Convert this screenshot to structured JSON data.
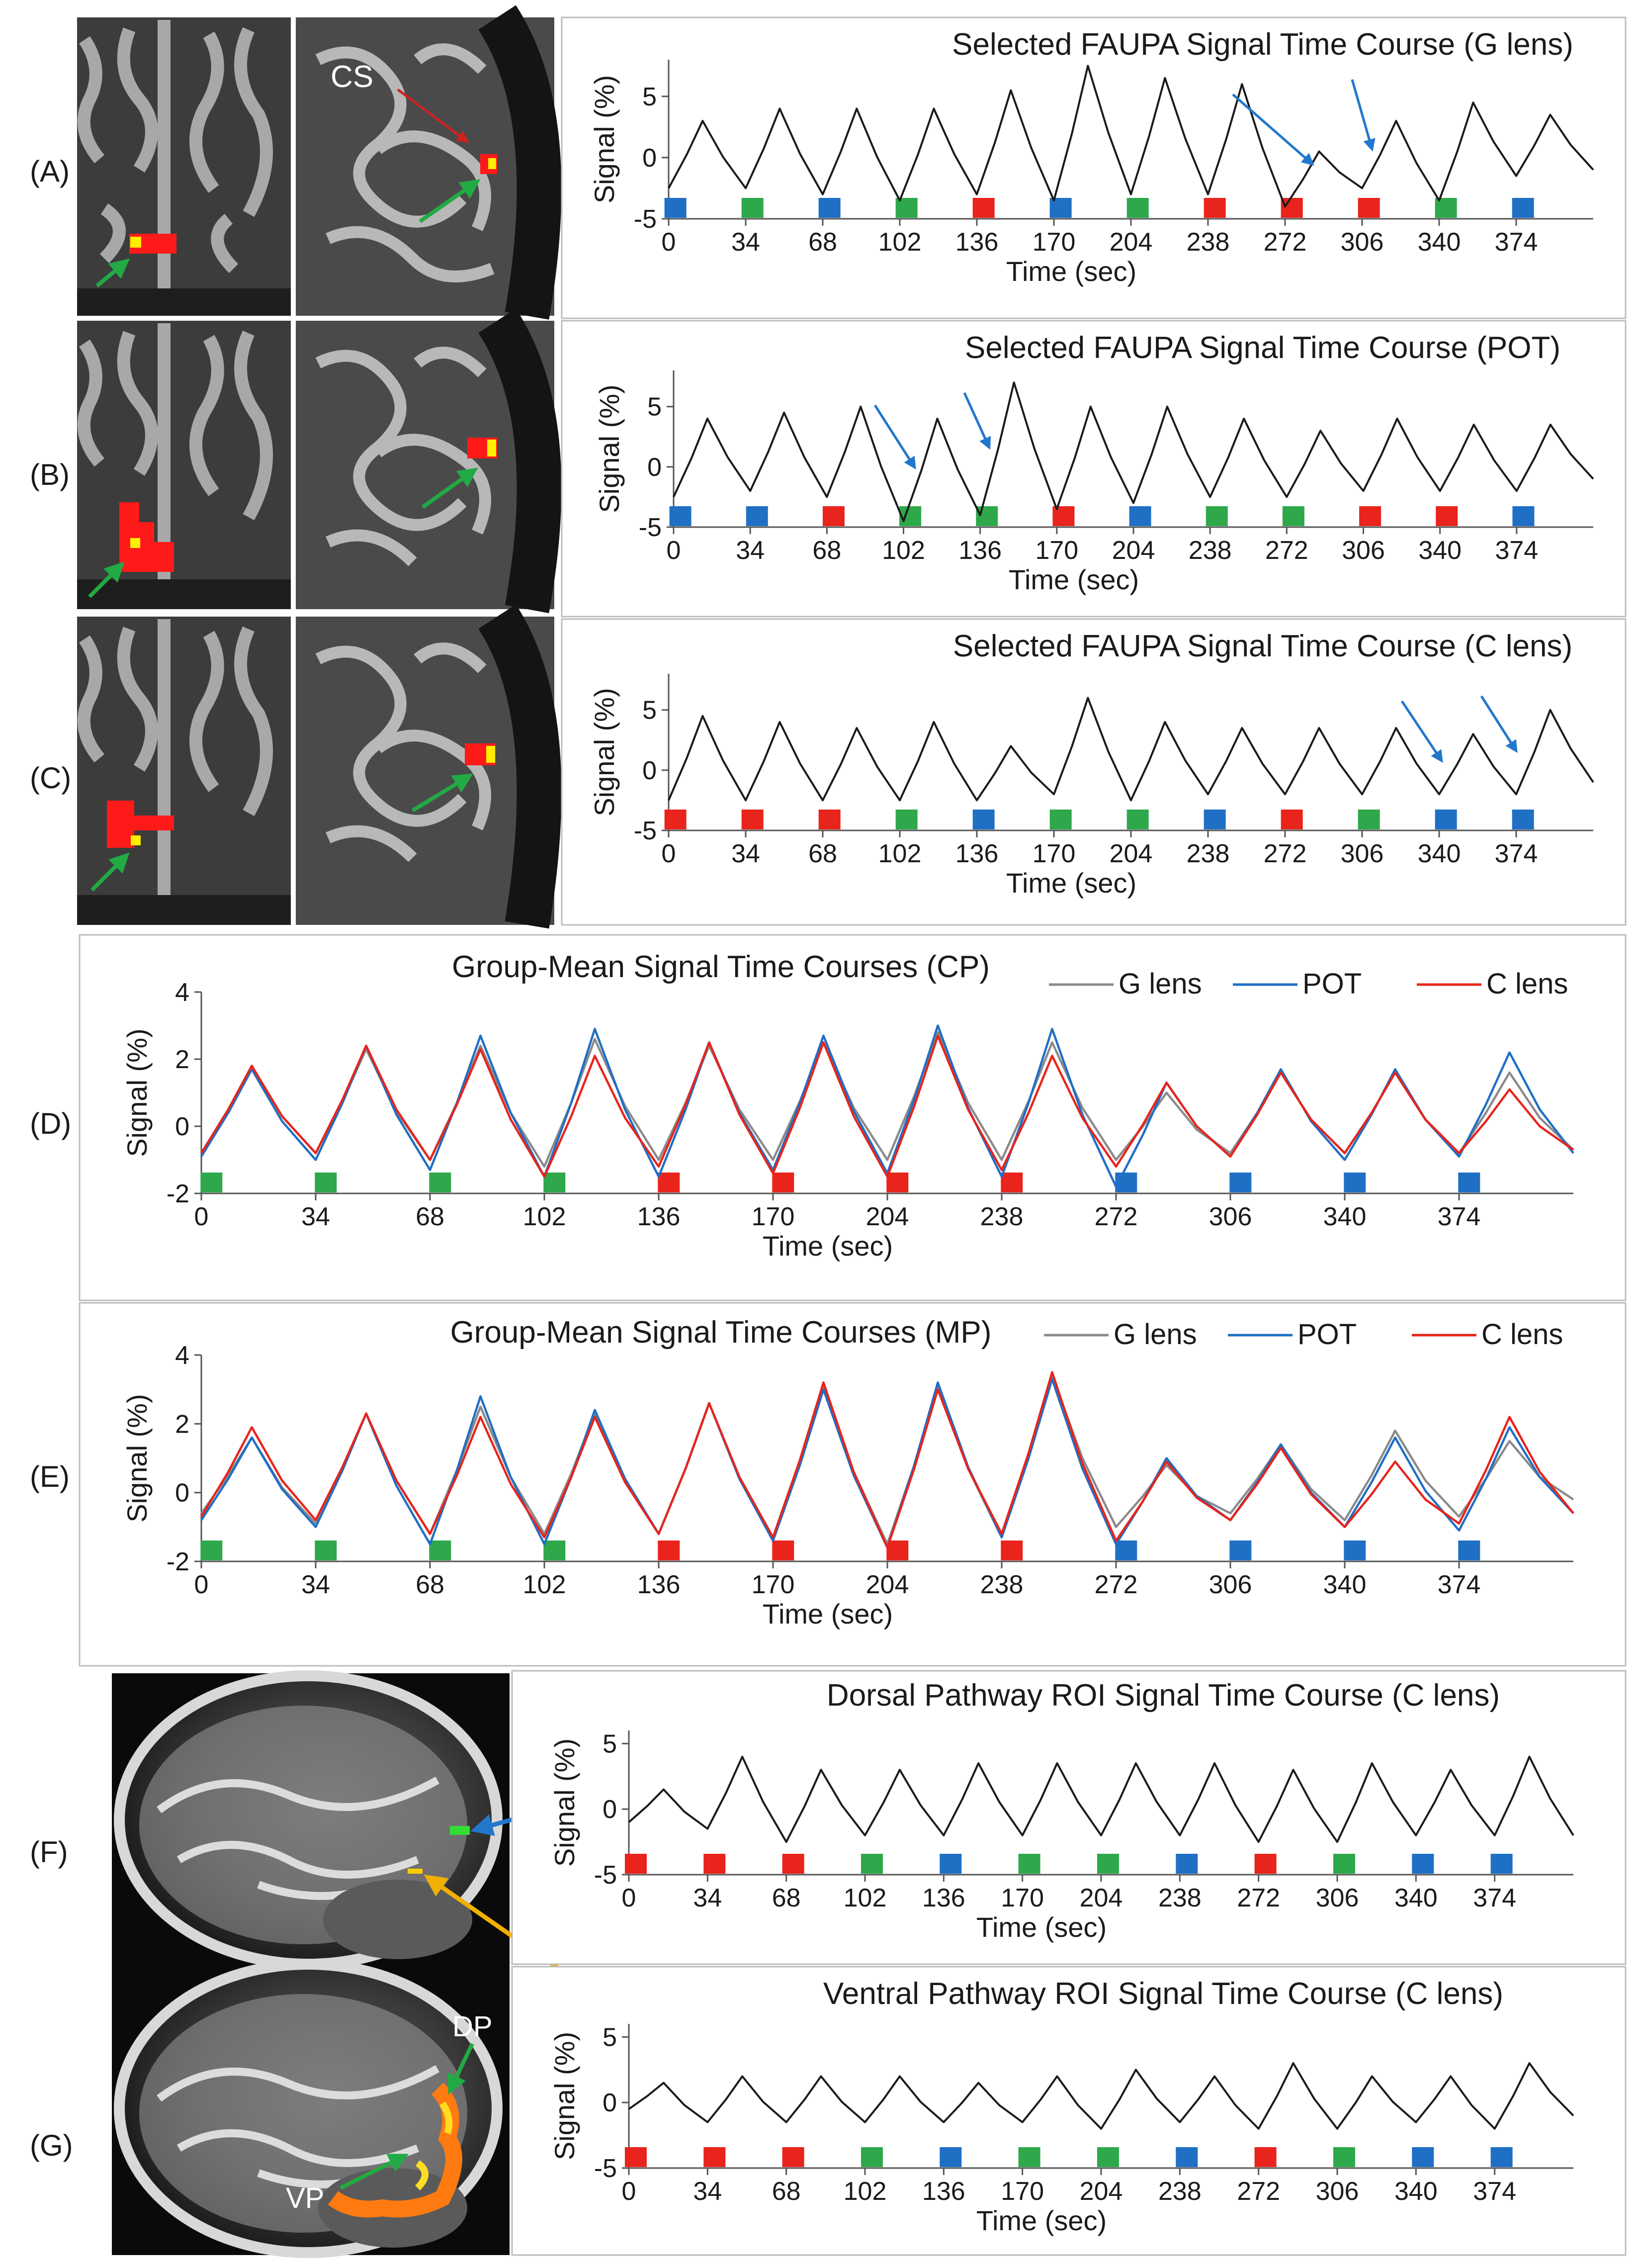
{
  "row_labels": {
    "A": "(A)",
    "B": "(B)",
    "C": "(C)",
    "D": "(D)",
    "E": "(E)",
    "F": "(F)",
    "G": "(G)"
  },
  "image_labels": {
    "cs": "CS",
    "dp": "DP",
    "vp": "VP"
  },
  "colors": {
    "green": "#2ea84a",
    "blue": "#1f6fc5",
    "red": "#e8241c",
    "gray": "#8a8a8a",
    "line": "#1a1a1a",
    "arrow_blue": "#2277cc",
    "arrow_yellow": "#f0b000",
    "arrow_green": "#22aa44",
    "arrow_red": "#cc2222"
  },
  "chart_data": [
    {
      "id": "A",
      "type": "line",
      "title": "Selected FAUPA Signal Time Course (G lens)",
      "xlabel": "Time (sec)",
      "ylabel": "Signal (%)",
      "ylim": [
        -5,
        8
      ],
      "yticks": [
        -5,
        0,
        5
      ],
      "xticks": [
        0,
        34,
        68,
        102,
        136,
        170,
        204,
        238,
        272,
        306,
        340,
        374
      ],
      "blocks": [
        "blue",
        "green",
        "blue",
        "green",
        "red",
        "blue",
        "green",
        "red",
        "red",
        "red",
        "green",
        "blue"
      ],
      "series": [
        {
          "name": "signal",
          "color": "line",
          "peaks": [
            3,
            4,
            4,
            4,
            5.5,
            7.5,
            6.5,
            6,
            0.5,
            3,
            4.5,
            3.5
          ],
          "troughs": [
            -2.5,
            -2.5,
            -3,
            -3.5,
            -3,
            -3.5,
            -3,
            -3,
            -4,
            -2.5,
            -3.5,
            -1.5,
            -1
          ]
        }
      ]
    },
    {
      "id": "B",
      "type": "line",
      "title": "Selected FAUPA Signal Time Course (POT)",
      "xlabel": "Time (sec)",
      "ylabel": "Signal (%)",
      "ylim": [
        -5,
        8
      ],
      "yticks": [
        -5,
        0,
        5
      ],
      "xticks": [
        0,
        34,
        68,
        102,
        136,
        170,
        204,
        238,
        272,
        306,
        340,
        374
      ],
      "blocks": [
        "blue",
        "blue",
        "red",
        "green",
        "green",
        "red",
        "blue",
        "green",
        "green",
        "red",
        "red",
        "blue"
      ],
      "series": [
        {
          "name": "signal",
          "color": "line",
          "peaks": [
            4,
            4.5,
            5,
            4,
            7,
            5,
            5,
            4,
            3,
            4,
            3.5,
            3.5
          ],
          "troughs": [
            -2.5,
            -2,
            -2.5,
            -4.5,
            -4,
            -3.5,
            -3,
            -2.5,
            -2.5,
            -2,
            -2,
            -2,
            -1
          ]
        }
      ]
    },
    {
      "id": "C",
      "type": "line",
      "title": "Selected FAUPA Signal Time Course (C lens)",
      "xlabel": "Time (sec)",
      "ylabel": "Signal (%)",
      "ylim": [
        -5,
        8
      ],
      "yticks": [
        -5,
        0,
        5
      ],
      "xticks": [
        0,
        34,
        68,
        102,
        136,
        170,
        204,
        238,
        272,
        306,
        340,
        374
      ],
      "blocks": [
        "red",
        "red",
        "red",
        "green",
        "blue",
        "green",
        "green",
        "blue",
        "red",
        "green",
        "blue",
        "blue"
      ],
      "series": [
        {
          "name": "signal",
          "color": "line",
          "peaks": [
            4.5,
            4,
            3.5,
            4,
            2,
            6,
            4,
            3.5,
            3.5,
            3.5,
            3,
            5
          ],
          "troughs": [
            -2.5,
            -2.5,
            -2.5,
            -2.5,
            -2.5,
            -2,
            -2.5,
            -2,
            -2,
            -2,
            -2,
            -2,
            -1
          ]
        }
      ]
    },
    {
      "id": "D",
      "type": "line",
      "title": "Group-Mean Signal Time Courses (CP)",
      "xlabel": "Time (sec)",
      "ylabel": "Signal (%)",
      "ylim": [
        -2,
        4
      ],
      "yticks": [
        -2,
        0,
        2,
        4
      ],
      "xticks": [
        0,
        34,
        68,
        102,
        136,
        170,
        204,
        238,
        272,
        306,
        340,
        374
      ],
      "blocks": [
        "green",
        "green",
        "green",
        "green",
        "red",
        "red",
        "red",
        "red",
        "blue",
        "blue",
        "blue",
        "blue"
      ],
      "series": [
        {
          "name": "G lens",
          "color": "gray",
          "peaks": [
            1.8,
            2.3,
            2.4,
            2.6,
            2.4,
            2.5,
            2.8,
            2.5,
            1.0,
            1.6,
            1.6,
            1.6
          ],
          "troughs": [
            -0.8,
            -0.8,
            -1.0,
            -1.2,
            -1.0,
            -1.0,
            -1.0,
            -1.0,
            -1.0,
            -0.8,
            -0.8,
            -0.8,
            -0.7
          ]
        },
        {
          "name": "POT",
          "color": "blue",
          "peaks": [
            1.7,
            2.4,
            2.7,
            2.9,
            2.5,
            2.7,
            3.0,
            2.9,
            1.3,
            1.7,
            1.7,
            2.2
          ],
          "troughs": [
            -0.9,
            -1.0,
            -1.3,
            -1.5,
            -1.5,
            -1.3,
            -1.4,
            -1.5,
            -1.8,
            -0.9,
            -1.0,
            -0.9,
            -0.8
          ]
        },
        {
          "name": "C lens",
          "color": "red",
          "peaks": [
            1.8,
            2.4,
            2.3,
            2.1,
            2.5,
            2.5,
            2.7,
            2.1,
            1.3,
            1.6,
            1.6,
            1.1
          ],
          "troughs": [
            -0.8,
            -0.8,
            -1.0,
            -1.5,
            -1.2,
            -1.4,
            -1.5,
            -1.3,
            -1.2,
            -0.9,
            -0.8,
            -0.8,
            -0.7
          ]
        }
      ],
      "legend": [
        "G lens",
        "POT",
        "C lens"
      ],
      "legend_position": "top-right"
    },
    {
      "id": "E",
      "type": "line",
      "title": "Group-Mean Signal Time Courses (MP)",
      "xlabel": "Time (sec)",
      "ylabel": "Signal (%)",
      "ylim": [
        -2,
        4
      ],
      "yticks": [
        -2,
        0,
        2,
        4
      ],
      "xticks": [
        0,
        34,
        68,
        102,
        136,
        170,
        204,
        238,
        272,
        306,
        340,
        374
      ],
      "blocks": [
        "green",
        "green",
        "green",
        "green",
        "red",
        "red",
        "red",
        "red",
        "blue",
        "blue",
        "blue",
        "blue"
      ],
      "series": [
        {
          "name": "G lens",
          "color": "gray",
          "peaks": [
            1.6,
            2.3,
            2.5,
            2.3,
            2.6,
            3.1,
            3.1,
            3.4,
            0.8,
            1.4,
            1.8,
            1.5
          ],
          "troughs": [
            -0.6,
            -0.9,
            -1.2,
            -1.2,
            -1.2,
            -1.3,
            -1.5,
            -1.3,
            -1.0,
            -0.6,
            -0.8,
            -0.7,
            -0.2
          ]
        },
        {
          "name": "POT",
          "color": "blue",
          "peaks": [
            1.6,
            2.3,
            2.8,
            2.4,
            2.6,
            3.0,
            3.2,
            3.3,
            1.0,
            1.4,
            1.6,
            1.9
          ],
          "troughs": [
            -0.8,
            -1.0,
            -1.5,
            -1.5,
            -1.2,
            -1.4,
            -1.6,
            -1.3,
            -1.5,
            -0.8,
            -1.0,
            -1.1,
            -0.6
          ]
        },
        {
          "name": "C lens",
          "color": "red",
          "peaks": [
            1.9,
            2.3,
            2.2,
            2.2,
            2.6,
            3.2,
            3.0,
            3.5,
            0.9,
            1.3,
            0.9,
            2.2
          ],
          "troughs": [
            -0.7,
            -0.8,
            -1.2,
            -1.3,
            -1.2,
            -1.3,
            -1.6,
            -1.2,
            -1.4,
            -0.8,
            -1.0,
            -0.9,
            -0.6
          ]
        }
      ],
      "legend": [
        "G lens",
        "POT",
        "C lens"
      ],
      "legend_position": "top-right"
    },
    {
      "id": "F",
      "type": "line",
      "title": "Dorsal Pathway ROI Signal Time Course (C lens)",
      "xlabel": "Time (sec)",
      "ylabel": "Signal (%)",
      "ylim": [
        -5,
        6
      ],
      "yticks": [
        -5,
        0,
        5
      ],
      "xticks": [
        0,
        34,
        68,
        102,
        136,
        170,
        204,
        238,
        272,
        306,
        340,
        374
      ],
      "blocks": [
        "red",
        "red",
        "red",
        "green",
        "blue",
        "green",
        "green",
        "blue",
        "red",
        "green",
        "blue",
        "blue"
      ],
      "series": [
        {
          "name": "signal",
          "color": "line",
          "peaks": [
            1.5,
            4,
            3,
            3,
            3.5,
            3.5,
            3.5,
            3.5,
            3,
            3.5,
            3,
            4
          ],
          "troughs": [
            -1,
            -1.5,
            -2.5,
            -2,
            -2,
            -2,
            -2,
            -2,
            -2.5,
            -2.5,
            -2,
            -2,
            -2
          ]
        }
      ]
    },
    {
      "id": "G",
      "type": "line",
      "title": "Ventral Pathway ROI Signal Time Course (C lens)",
      "xlabel": "Time (sec)",
      "ylabel": "Signal (%)",
      "ylim": [
        -5,
        6
      ],
      "yticks": [
        -5,
        0,
        5
      ],
      "xticks": [
        0,
        34,
        68,
        102,
        136,
        170,
        204,
        238,
        272,
        306,
        340,
        374
      ],
      "blocks": [
        "red",
        "red",
        "red",
        "green",
        "blue",
        "green",
        "green",
        "blue",
        "red",
        "green",
        "blue",
        "blue"
      ],
      "series": [
        {
          "name": "signal",
          "color": "line",
          "peaks": [
            1.5,
            2,
            2,
            2,
            1.5,
            2,
            2.5,
            2,
            3,
            2,
            2,
            3
          ],
          "troughs": [
            -0.5,
            -1.5,
            -1.5,
            -1.5,
            -1.5,
            -1.5,
            -2,
            -1.5,
            -2,
            -2,
            -1.5,
            -2,
            -1
          ]
        }
      ]
    }
  ]
}
